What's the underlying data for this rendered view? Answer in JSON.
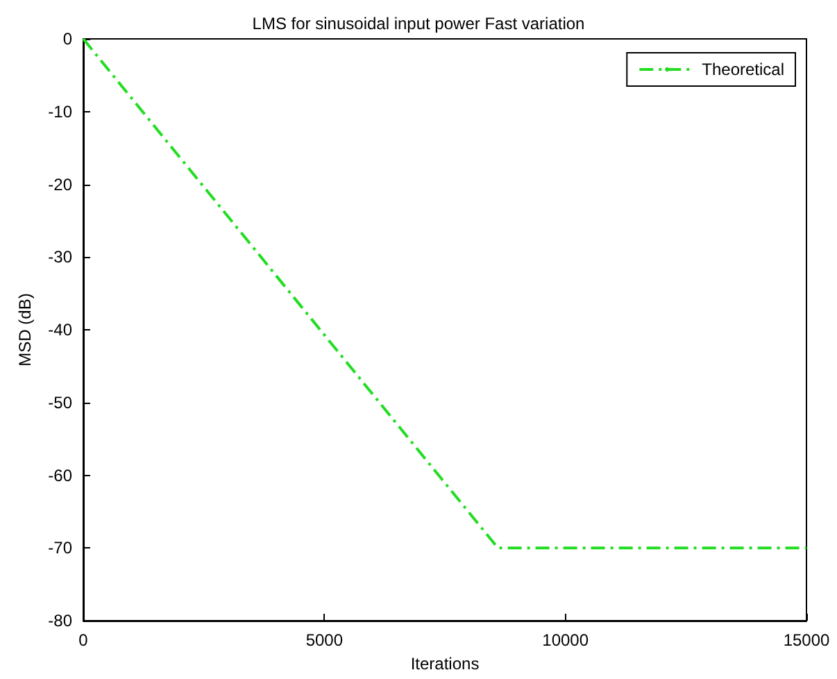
{
  "chart_data": {
    "type": "line",
    "title": "LMS for sinusoidal input power Fast variation",
    "xlabel": "Iterations",
    "ylabel": "MSD (dB)",
    "x": [
      0,
      8600,
      15000
    ],
    "series": [
      {
        "name": "Theoretical",
        "color": "#22dd22",
        "values": [
          0,
          -70,
          -70
        ]
      }
    ],
    "xlim": [
      0,
      15000
    ],
    "xticks": [
      0,
      5000,
      10000,
      15000
    ],
    "ylim": [
      -80,
      0
    ],
    "yticks": [
      -80,
      -70,
      -60,
      -50,
      -40,
      -30,
      -20,
      -10,
      0
    ],
    "grid": false,
    "legend": "top right",
    "marker": "none",
    "line_style": "dashed"
  }
}
